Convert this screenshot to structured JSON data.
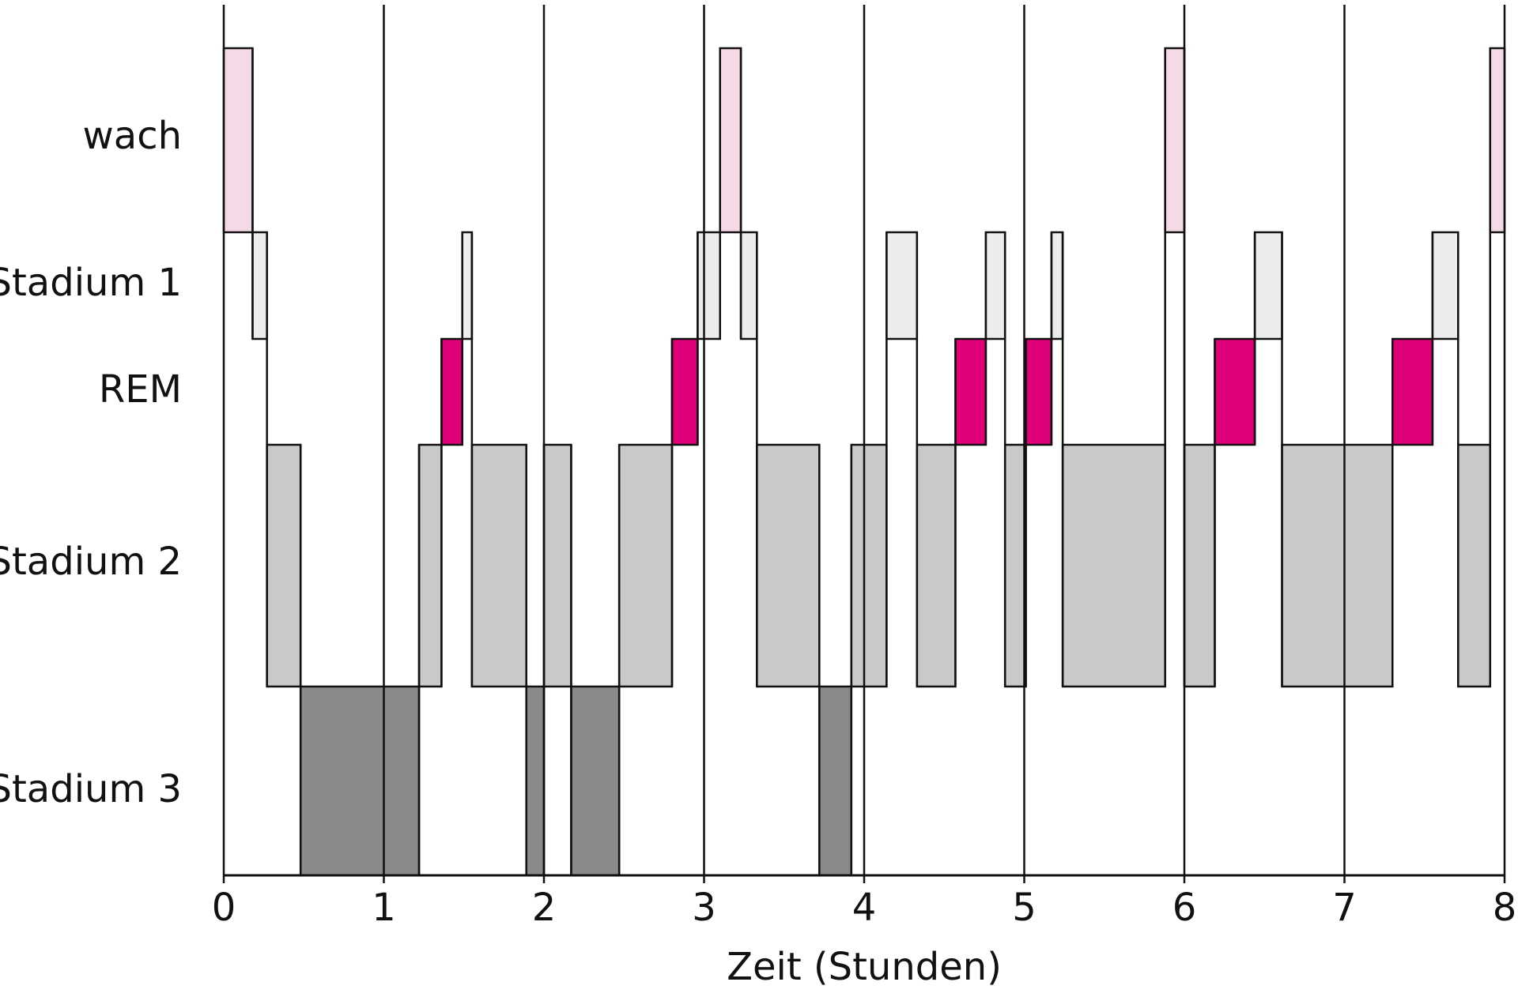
{
  "chart_data": {
    "type": "hypnogram",
    "xlabel": "Zeit (Stunden)",
    "xlim": [
      0,
      8
    ],
    "xticks": [
      0,
      1,
      2,
      3,
      4,
      5,
      6,
      7,
      8
    ],
    "grid": true,
    "series": [
      {
        "name": "wach",
        "color": "#f6d9e6",
        "segments": [
          [
            0,
            0.18
          ],
          [
            3.1,
            3.23
          ],
          [
            5.88,
            6.0
          ],
          [
            7.91,
            8.0
          ]
        ]
      },
      {
        "name": "Stadium 1",
        "color": "#ebecec",
        "segments": [
          [
            0.18,
            0.27
          ],
          [
            1.49,
            1.55
          ],
          [
            2.96,
            3.1
          ],
          [
            3.23,
            3.33
          ],
          [
            4.14,
            4.33
          ],
          [
            4.76,
            4.88
          ],
          [
            5.17,
            5.24
          ],
          [
            6.44,
            6.61
          ],
          [
            7.55,
            7.71
          ]
        ]
      },
      {
        "name": "REM",
        "color": "#e0007a",
        "segments": [
          [
            1.36,
            1.49
          ],
          [
            2.8,
            2.96
          ],
          [
            4.57,
            4.76
          ],
          [
            5.01,
            5.17
          ],
          [
            6.19,
            6.44
          ],
          [
            7.3,
            7.55
          ]
        ]
      },
      {
        "name": "Stadium 2",
        "color": "#c8c9cb",
        "segments": [
          [
            0.27,
            0.48
          ],
          [
            1.22,
            1.36
          ],
          [
            1.55,
            1.89
          ],
          [
            2.0,
            2.17
          ],
          [
            2.47,
            2.8
          ],
          [
            3.33,
            3.72
          ],
          [
            3.92,
            4.14
          ],
          [
            4.33,
            4.57
          ],
          [
            4.88,
            5.01
          ],
          [
            5.24,
            5.88
          ],
          [
            6.0,
            6.19
          ],
          [
            6.61,
            7.3
          ],
          [
            7.71,
            7.91
          ]
        ]
      },
      {
        "name": "Stadium 3",
        "color": "#8a8a8b",
        "segments": [
          [
            0.48,
            1.22
          ],
          [
            1.89,
            2.0
          ],
          [
            2.17,
            2.47
          ],
          [
            3.72,
            3.92
          ]
        ]
      }
    ]
  }
}
